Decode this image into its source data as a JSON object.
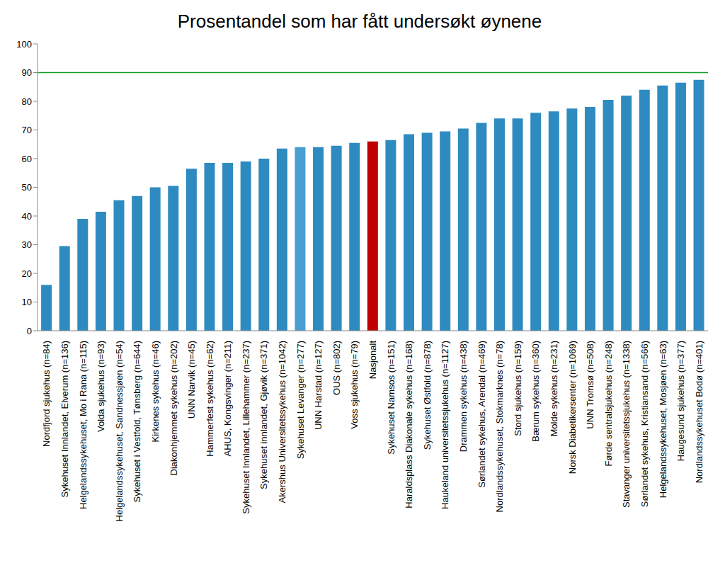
{
  "chart_data": {
    "type": "bar",
    "title": "Prosentandel som har fått undersøkt øynene",
    "categories": [
      "Nordfjord sjukehus (n=84)",
      "Sykehuset Innlandet, Elverum (n=136)",
      "Helgelandssykehuset, Mo i Rana (n=115)",
      "Volda sjukehus (n=93)",
      "Helgelandssykehuset, Sandnessjøen (n=54)",
      "Sykehuset i Vestfold, Tønsberg (n=644)",
      "Kirkenes sykehus (n=46)",
      "Diakonhjemmet sykehus (n=202)",
      "UNN Narvik (n=45)",
      "Hammerfest sykehus (n=62)",
      "AHUS, Kongsvinger (n=211)",
      "Sykehuset Innlandet, Lillehammer (n=237)",
      "Sykehuset innlandet, Gjøvik (n=371)",
      "Akershus Universitetssykehus (n=1042)",
      "Sykehuset Levanger (n=277)",
      "UNN Harstad (n=127)",
      "OUS (n=802)",
      "Voss sjukehus (n=79)",
      "Nasjonalt",
      "Sykehuset Namsos (n=151)",
      "Haraldsplass Diakonale sykehus (n=168)",
      "Sykehuset Østfold (n=878)",
      "Haukeland universitetssjukehus (n=1127)",
      "Drammen sykehus (n=438)",
      "Sørlandet sykehus, Arendal (n=469)",
      "Nordlandssykehuset, Stokmarknes (n=78)",
      "Stord sjukehus (n=159)",
      "Bærum sykehus (n=360)",
      "Molde sykehus (n=231)",
      "Norsk Diabetikersenter (n=1069)",
      "UNN Tromsø (n=508)",
      "Førde sentralsjukehus (n=248)",
      "Stavanger universitetssjukehus (n=1338)",
      "Sørlandet sykehus, Kristiansand (n=566)",
      "Helgelandssykehuset, Mosjøen (n=63)",
      "Haugesund sjukehus (n=377)",
      "Nordlandssykehuset Bodø (n=401)"
    ],
    "values": [
      16,
      29.5,
      39,
      41.5,
      45.5,
      47,
      50,
      50.5,
      56.5,
      58.5,
      58.5,
      59,
      60,
      63.5,
      64,
      64,
      64.5,
      65.5,
      66,
      66.5,
      68.5,
      69,
      69.5,
      70.5,
      72.5,
      74,
      74,
      76,
      76.5,
      77.5,
      78,
      80.5,
      82,
      84,
      85.5,
      86.5,
      87.5
    ],
    "colors": [
      "#2e8bc0",
      "#2e8bc0",
      "#2e8bc0",
      "#2e8bc0",
      "#2e8bc0",
      "#2e8bc0",
      "#2e8bc0",
      "#2e8bc0",
      "#2e8bc0",
      "#2e8bc0",
      "#2e8bc0",
      "#2e8bc0",
      "#2e8bc0",
      "#2e8bc0",
      "#4a9fd2",
      "#2e8bc0",
      "#2e8bc0",
      "#2e8bc0",
      "#c00000",
      "#2e8bc0",
      "#2e8bc0",
      "#2e8bc0",
      "#2e8bc0",
      "#2e8bc0",
      "#2e8bc0",
      "#2e8bc0",
      "#2e8bc0",
      "#2e8bc0",
      "#2e8bc0",
      "#2e8bc0",
      "#2e8bc0",
      "#2e8bc0",
      "#2e8bc0",
      "#2e8bc0",
      "#2e8bc0",
      "#2e8bc0",
      "#2e8bc0"
    ],
    "reference_line": 90,
    "ylim": [
      0,
      100
    ],
    "yticks": [
      0,
      10,
      20,
      30,
      40,
      50,
      60,
      70,
      80,
      90,
      100
    ],
    "grid": false
  }
}
